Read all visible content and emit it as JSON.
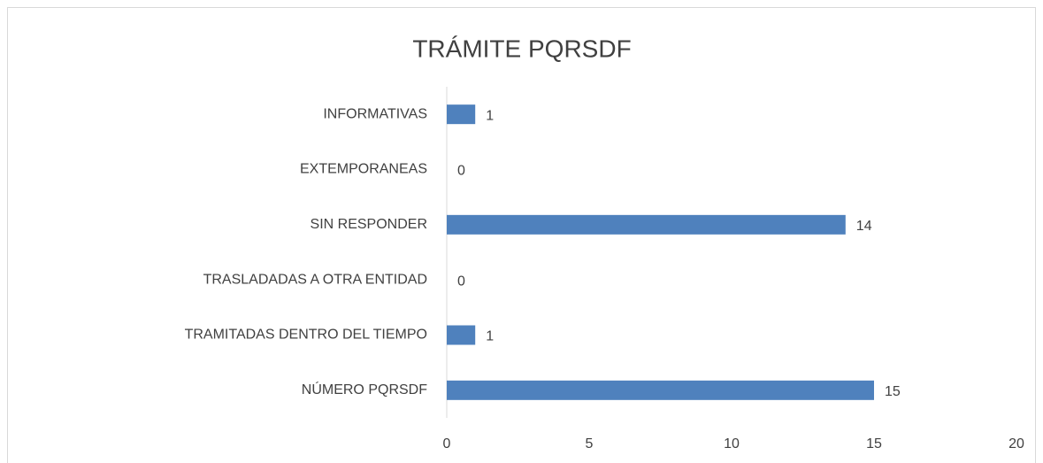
{
  "chart_data": {
    "type": "barh",
    "title": "TRÁMITE PQRSDF",
    "categories": [
      "INFORMATIVAS",
      "EXTEMPORANEAS",
      "SIN RESPONDER",
      "TRASLADADAS A OTRA ENTIDAD",
      "TRAMITADAS DENTRO DEL TIEMPO",
      "NÚMERO PQRSDF"
    ],
    "values": [
      1,
      0,
      14,
      0,
      1,
      15
    ],
    "color": "#4f81bd",
    "xlim": [
      0,
      20
    ],
    "xticks": [
      0,
      5,
      10,
      15,
      20
    ],
    "grid": false
  }
}
